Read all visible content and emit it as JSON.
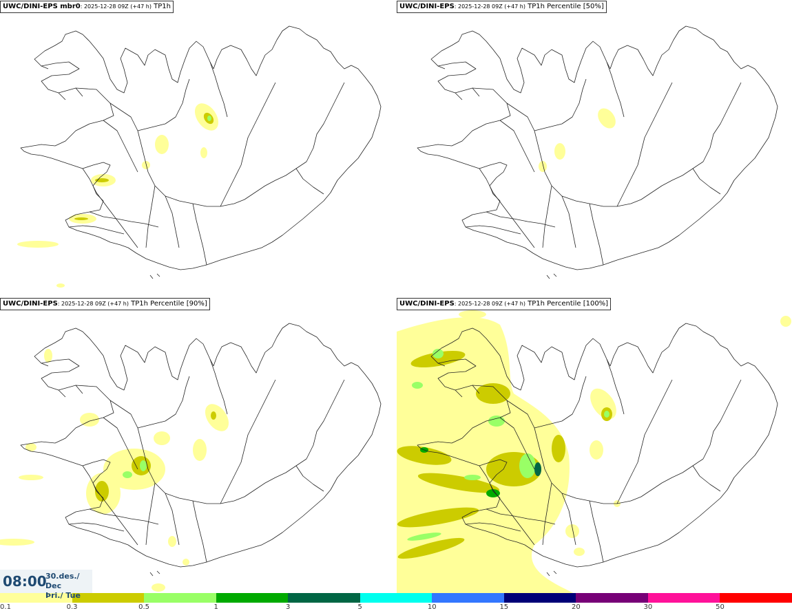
{
  "panels": [
    {
      "model": "UWC/DINI-EPS mbr0",
      "time": ": 2025-12-28 09Z (+47 h)",
      "field": " TP1h"
    },
    {
      "model": "UWC/DINI-EPS",
      "time": ": 2025-12-28 09Z (+47 h)",
      "field": " TP1h Percentile [50%]"
    },
    {
      "model": "UWC/DINI-EPS",
      "time": ": 2025-12-28 09Z (+47 h)",
      "field": " TP1h Percentile [90%]"
    },
    {
      "model": "UWC/DINI-EPS",
      "time": ": 2025-12-28 09Z (+47 h)",
      "field": " TP1h Percentile [100%]"
    }
  ],
  "valid_time": {
    "clock": "08:00",
    "date_line1": "30.des./ Dec",
    "date_line2": "Þri./ Tue"
  },
  "legend": {
    "colors": [
      "#ffff99",
      "#cccc00",
      "#99ff66",
      "#00aa00",
      "#006644",
      "#00ffee",
      "#3377ff",
      "#000077",
      "#770077",
      "#ff1199",
      "#ff0000"
    ],
    "labels": [
      "0.1",
      "0.3",
      "0.5",
      "1",
      "3",
      "5",
      "10",
      "15",
      "20",
      "30",
      "50"
    ]
  }
}
